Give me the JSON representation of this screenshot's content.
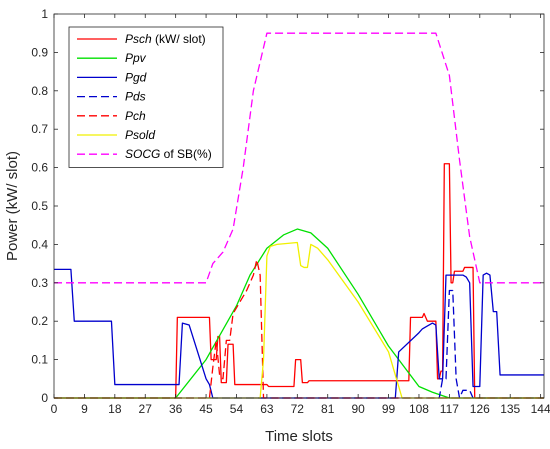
{
  "chart_data": {
    "type": "line",
    "xlabel": "Time slots",
    "ylabel": "Power (kW/ slot)",
    "xlim": [
      0,
      145
    ],
    "ylim": [
      0,
      1
    ],
    "xticks": [
      0,
      9,
      18,
      27,
      36,
      45,
      54,
      63,
      72,
      81,
      90,
      99,
      108,
      117,
      126,
      135,
      144
    ],
    "yticks": [
      0,
      0.1,
      0.2,
      0.3,
      0.4,
      0.5,
      0.6,
      0.7,
      0.8,
      0.9,
      1
    ],
    "grid": false,
    "legend_position": "top-left",
    "series": [
      {
        "name": "Psch",
        "legend": [
          {
            "t": "Psch",
            "i": true
          },
          {
            "t": " (kW/ slot)",
            "i": false
          }
        ],
        "color": "#ff0000",
        "dash": "solid",
        "x": [
          0,
          36,
          36.5,
          46,
          46.5,
          48,
          48.5,
          49,
          49.5,
          51,
          51.5,
          53,
          53.5,
          63,
          63.5,
          71,
          71.5,
          73,
          73.5,
          75,
          75.5,
          105,
          105.5,
          109,
          109.5,
          110,
          110.5,
          113,
          113.5,
          114,
          114.5,
          115,
          115.5,
          117,
          117.5,
          118,
          118.5,
          121,
          121.5,
          124,
          124.5,
          145
        ],
        "y": [
          0,
          0,
          0.21,
          0.21,
          0.1,
          0.1,
          0.16,
          0.16,
          0.04,
          0.04,
          0.14,
          0.14,
          0.035,
          0.035,
          0.03,
          0.03,
          0.1,
          0.1,
          0.04,
          0.04,
          0.045,
          0.045,
          0.21,
          0.21,
          0.22,
          0.21,
          0.2,
          0.2,
          0.05,
          0.05,
          0.07,
          0.07,
          0.61,
          0.61,
          0.3,
          0.3,
          0.33,
          0.33,
          0.34,
          0.34,
          0,
          0
        ]
      },
      {
        "name": "Ppv",
        "legend": [
          {
            "t": "Ppv",
            "i": true
          }
        ],
        "color": "#00e000",
        "dash": "solid",
        "x": [
          0,
          36,
          45,
          54,
          58,
          63,
          68,
          72,
          76,
          81,
          90,
          99,
          108,
          112,
          117,
          120,
          145
        ],
        "y": [
          0,
          0,
          0.1,
          0.24,
          0.32,
          0.39,
          0.425,
          0.44,
          0.43,
          0.39,
          0.27,
          0.135,
          0.03,
          0.015,
          0,
          0,
          0
        ]
      },
      {
        "name": "Pgd",
        "legend": [
          {
            "t": "Pgd",
            "i": true
          }
        ],
        "color": "#0000cd",
        "dash": "solid",
        "x": [
          0,
          5,
          6,
          17,
          18,
          37,
          38,
          40,
          45,
          46,
          47,
          101,
          102,
          108,
          109,
          110,
          112,
          113,
          114,
          115,
          116,
          117,
          118,
          121,
          122,
          123,
          124,
          126,
          127,
          128,
          129,
          130,
          131,
          132,
          145
        ],
        "y": [
          0.335,
          0.335,
          0.2,
          0.2,
          0.035,
          0.035,
          0.195,
          0.19,
          0.05,
          0.035,
          0,
          0,
          0.12,
          0.17,
          0.18,
          0.185,
          0.195,
          0.19,
          0.05,
          0.05,
          0.32,
          0.32,
          0.32,
          0.32,
          0.315,
          0.3,
          0.03,
          0.03,
          0.32,
          0.325,
          0.32,
          0.225,
          0.225,
          0.06,
          0.06
        ]
      },
      {
        "name": "Pds",
        "legend": [
          {
            "t": "Pds",
            "i": true
          }
        ],
        "color": "#0000cd",
        "dash": "dashed",
        "x": [
          0,
          114,
          115,
          116,
          117,
          118,
          119,
          120,
          121,
          122,
          123,
          124,
          145
        ],
        "y": [
          0,
          0,
          0.05,
          0.05,
          0.28,
          0.28,
          0.05,
          0,
          0.02,
          0.02,
          0.02,
          0,
          0
        ]
      },
      {
        "name": "Pch",
        "legend": [
          {
            "t": "Pch",
            "i": true
          }
        ],
        "color": "#ff0000",
        "dash": "dashed",
        "x": [
          0,
          46,
          47,
          48,
          49,
          50,
          51,
          52,
          53,
          55,
          57,
          59,
          60,
          61,
          62,
          145
        ],
        "y": [
          0,
          0,
          0.08,
          0.15,
          0.06,
          0.05,
          0.15,
          0.15,
          0.22,
          0.25,
          0.28,
          0.32,
          0.36,
          0.32,
          0,
          0
        ]
      },
      {
        "name": "Psold",
        "legend": [
          {
            "t": "Psold",
            "i": true
          }
        ],
        "color": "#f0f000",
        "dash": "solid",
        "x": [
          0,
          61,
          62,
          63,
          64,
          66,
          72,
          73,
          74,
          75,
          76,
          78,
          81,
          90,
          99,
          103,
          145
        ],
        "y": [
          0,
          0,
          0.1,
          0.37,
          0.395,
          0.4,
          0.405,
          0.345,
          0.34,
          0.34,
          0.4,
          0.39,
          0.36,
          0.25,
          0.12,
          0,
          0
        ]
      },
      {
        "name": "SOCG of SB(%)",
        "legend": [
          {
            "t": "SOCG",
            "i": true
          },
          {
            "t": " of SB(%)",
            "i": false
          }
        ],
        "color": "#ff00ff",
        "dash": "dashed",
        "x": [
          0,
          45,
          47,
          50,
          53,
          56,
          59,
          63,
          64,
          113,
          117,
          120,
          123,
          126,
          145
        ],
        "y": [
          0.3,
          0.3,
          0.35,
          0.38,
          0.44,
          0.6,
          0.8,
          0.95,
          0.95,
          0.95,
          0.84,
          0.62,
          0.42,
          0.3,
          0.3
        ]
      }
    ]
  }
}
